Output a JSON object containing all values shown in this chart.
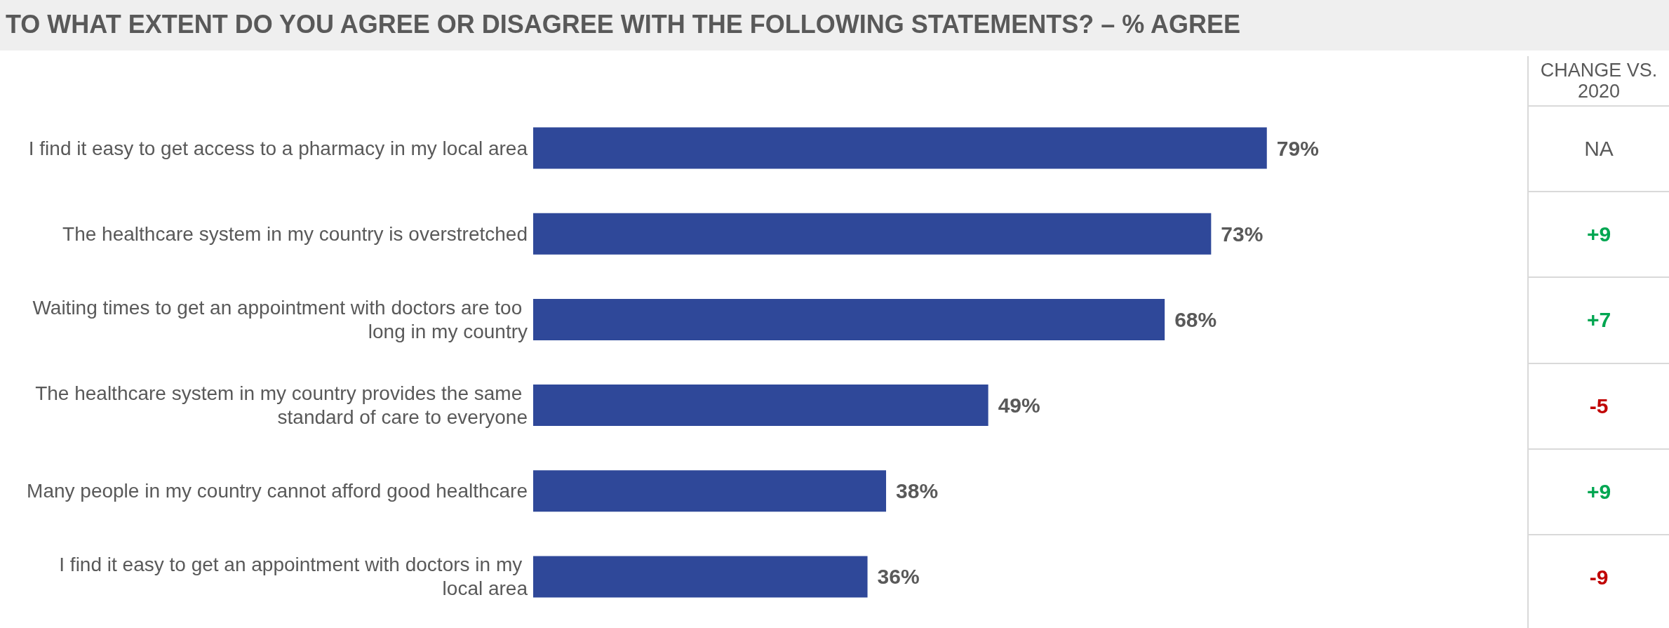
{
  "chart_data": {
    "type": "bar",
    "orientation": "horizontal",
    "title": "TO WHAT EXTENT DO YOU AGREE OR DISAGREE WITH THE FOLLOWING STATEMENTS? – % AGREE",
    "categories": [
      "I find it easy to get access to a pharmacy in my local area",
      "The healthcare system in my country is overstretched",
      "Waiting times to get an appointment with doctors are too long in my country",
      "The healthcare system in my country provides the same standard of care to everyone",
      "Many people in my country cannot afford good healthcare",
      "I find it easy to get an appointment with doctors in my local area"
    ],
    "values": [
      79,
      73,
      68,
      49,
      38,
      36
    ],
    "value_labels": [
      "79%",
      "73%",
      "68%",
      "49%",
      "38%",
      "36%"
    ],
    "color": "#2f4899",
    "grid": false,
    "annotations": [
      "CHANGE VS. 2020",
      "NA",
      "+9",
      "+7",
      "-5",
      "+9",
      "-9"
    ]
  }
}
